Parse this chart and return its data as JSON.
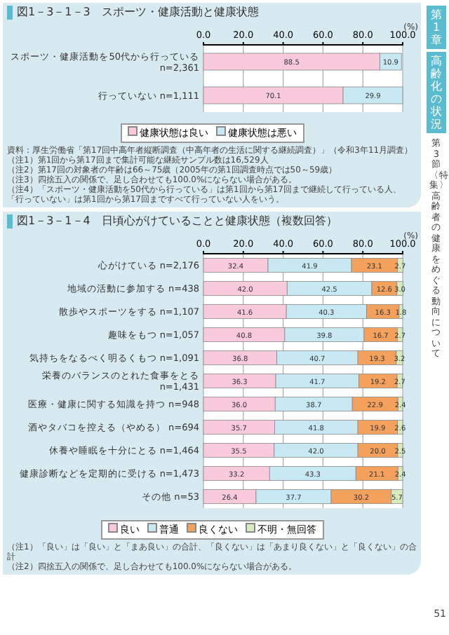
{
  "chart_data": [
    {
      "type": "bar",
      "orientation": "horizontal",
      "stacked": true,
      "title": "図1－3－1－3　スポーツ・健康活動と健康状態",
      "xlabel": "(%)",
      "categories": [
        "スポーツ・健康活動を50代から行っている n=2,361",
        "行っていない n=1,111"
      ],
      "series": [
        {
          "name": "健康状態は良い",
          "color": "#f9c9dc",
          "values": [
            88.5,
            70.1
          ],
          "value_labels": [
            "88.5",
            "70.1"
          ]
        },
        {
          "name": "健康状態は悪い",
          "color": "#c8e8f4",
          "values": [
            10.9,
            29.9
          ],
          "value_labels": [
            "10.9",
            "29.9"
          ]
        }
      ],
      "xlim": [
        0,
        100
      ],
      "xticks": [
        {
          "value": 0,
          "label": "0.0"
        },
        {
          "value": 20,
          "label": "20.0"
        },
        {
          "value": 40,
          "label": "40.0"
        },
        {
          "value": 60,
          "label": "60.0"
        },
        {
          "value": 80,
          "label": "80.0"
        },
        {
          "value": 100,
          "label": "100.0"
        }
      ],
      "grid": "x",
      "legend": "bottom",
      "annotations": [
        "資料：厚生労働省「第17回中高年者縦断調査（中高年者の生活に関する継続調査）」（令和3年11月調査）",
        "（注1）第1回から第17回まで集計可能な継続サンプル数は16,529人",
        "（注2）第17回の対象者の年齢は66～75歳（2005年の第1回調査時点では50～59歳）",
        "（注3）四捨五入の関係で、足し合わせても100.0%にならない場合がある。",
        "（注4）「スポーツ・健康活動を50代から行っている」は第1回から第17回まで継続して行っている人、「行っていない」は第1回から第17回まですべて行っていない人をいう。"
      ]
    },
    {
      "type": "bar",
      "orientation": "horizontal",
      "stacked": true,
      "title": "図1－3－1－4　日頃心がけていることと健康状態（複数回答）",
      "xlabel": "(%)",
      "categories": [
        "心がけている n=2,176",
        "地域の活動に参加する n=438",
        "散歩やスポーツをする n=1,107",
        "趣味をもつ n=1,057",
        "気持ちをなるべく明るくもつ n=1,091",
        "栄養のバランスのとれた食事をとる n=1,431",
        "医療・健康に関する知識を持つ n=948",
        "酒やタバコを控える（やめる） n=694",
        "休養や睡眠を十分にとる n=1,464",
        "健康診断などを定期的に受ける n=1,473",
        "その他 n=53"
      ],
      "series": [
        {
          "name": "良い",
          "color": "#f9c9dc",
          "values": [
            32.4,
            42.0,
            41.6,
            40.8,
            36.8,
            36.3,
            36.0,
            35.7,
            35.5,
            33.2,
            26.4
          ],
          "value_labels": [
            "32.4",
            "42.0",
            "41.6",
            "40.8",
            "36.8",
            "36.3",
            "36.0",
            "35.7",
            "35.5",
            "33.2",
            "26.4"
          ]
        },
        {
          "name": "普通",
          "color": "#c8e8f4",
          "values": [
            41.9,
            42.5,
            40.3,
            39.8,
            40.7,
            41.7,
            38.7,
            41.8,
            42.0,
            43.3,
            37.7
          ],
          "value_labels": [
            "41.9",
            "42.5",
            "40.3",
            "39.8",
            "40.7",
            "41.7",
            "38.7",
            "41.8",
            "42.0",
            "43.3",
            "37.7"
          ]
        },
        {
          "name": "良くない",
          "color": "#f4a15d",
          "values": [
            23.1,
            12.6,
            16.3,
            16.7,
            19.3,
            19.2,
            22.9,
            19.9,
            20.0,
            21.1,
            30.2
          ],
          "value_labels": [
            "23.1",
            "12.6",
            "16.3",
            "16.7",
            "19.3",
            "19.2",
            "22.9",
            "19.9",
            "20.0",
            "21.1",
            "30.2"
          ]
        },
        {
          "name": "不明・無回答",
          "color": "#d8ebbf",
          "values": [
            2.7,
            3.0,
            1.8,
            2.7,
            3.2,
            2.7,
            2.4,
            2.6,
            2.5,
            2.4,
            5.7
          ],
          "value_labels": [
            "2.7",
            "3.0",
            "1.8",
            "2.7",
            "3.2",
            "2.7",
            "2.4",
            "2.6",
            "2.5",
            "2.4",
            "5.7"
          ]
        }
      ],
      "xlim": [
        0,
        100
      ],
      "xticks": [
        {
          "value": 0,
          "label": "0.0"
        },
        {
          "value": 20,
          "label": "20.0"
        },
        {
          "value": 40,
          "label": "40.0"
        },
        {
          "value": 60,
          "label": "60.0"
        },
        {
          "value": 80,
          "label": "80.0"
        },
        {
          "value": 100,
          "label": "100.0"
        }
      ],
      "grid": "x",
      "legend": "bottom",
      "annotations": [
        "（注1）「良い」は「良い」と「まあ良い」の合計、「良くない」は「あまり良くない」と「良くない」の合計",
        "（注2）四捨五入の関係で、足し合わせても100.0%にならない場合がある。"
      ]
    },
    {
      "type": "other",
      "annotations": [
        "第1章",
        "高齢化の状況",
        "第3節〈特集〉高齢者の健康をめぐる動向について",
        "51"
      ]
    }
  ]
}
